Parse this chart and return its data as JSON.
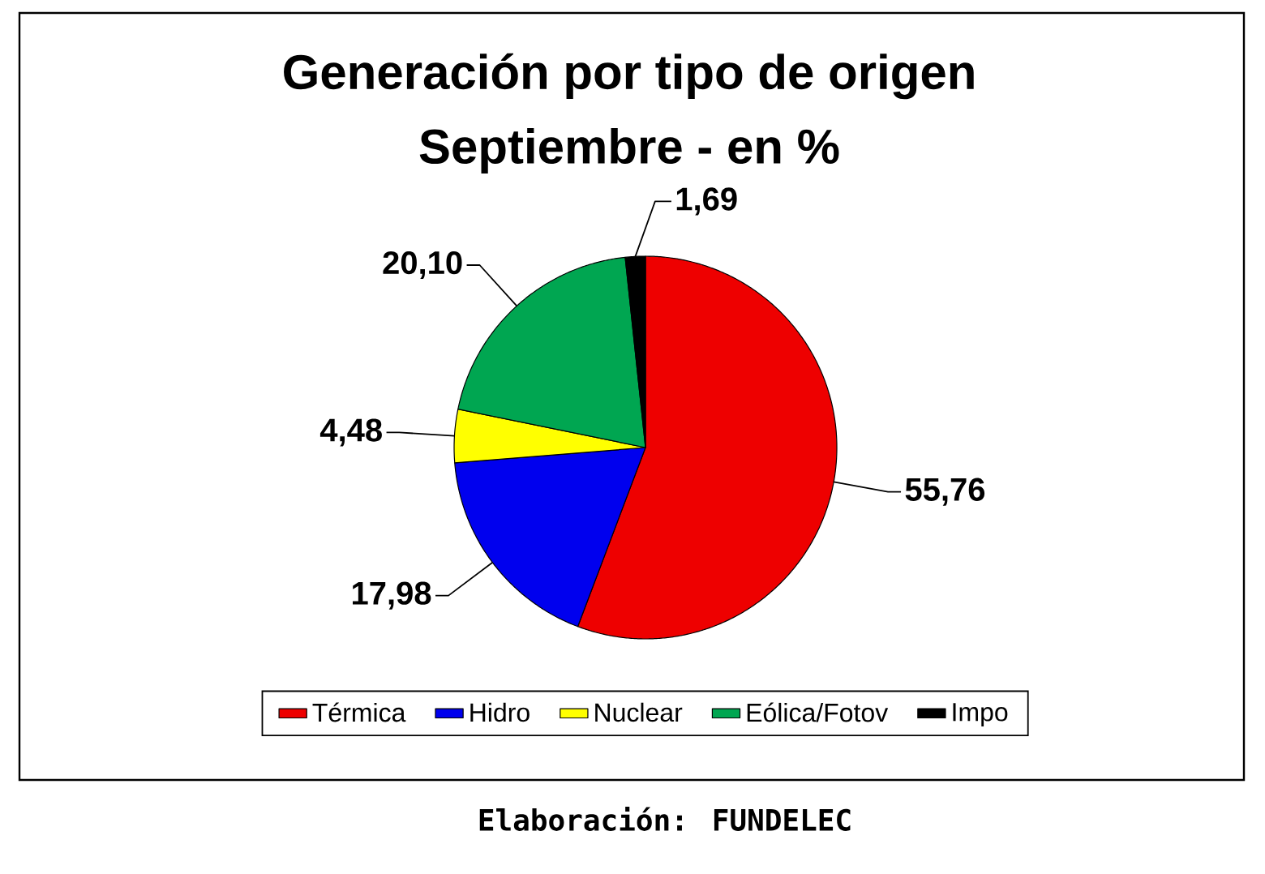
{
  "chart_data": {
    "type": "pie",
    "title": "Generación por tipo de origen",
    "subtitle": "Septiembre - en %",
    "categories": [
      "Térmica",
      "Hidro",
      "Nuclear",
      "Eólica/Fotov",
      "Impo"
    ],
    "values": [
      55.76,
      17.98,
      4.48,
      20.1,
      1.69
    ],
    "colors": [
      "#ee0000",
      "#0000ee",
      "#ffff00",
      "#00a651",
      "#000000"
    ],
    "value_labels": [
      "55,76",
      "17,98",
      "4,48",
      "20,10",
      "1,69"
    ],
    "legend": "bottom",
    "annotations": [
      "Elaboración: FUNDELEC"
    ]
  }
}
